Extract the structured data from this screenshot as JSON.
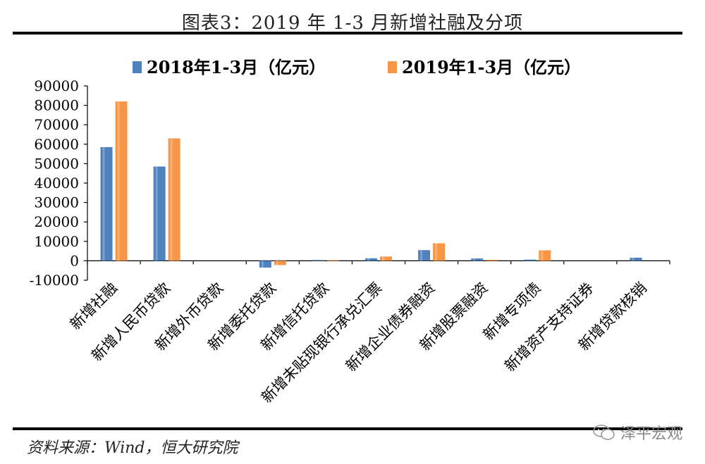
{
  "title": "图表3：2019 年 1-3 月新增社融及分项",
  "source": "资料来源：Wind，恒大研究院",
  "watermark": "泽平宏观",
  "colors": {
    "series_2018": "#4f81bd",
    "series_2019": "#f79646",
    "axis": "#000000"
  },
  "chart_data": {
    "type": "bar",
    "categories": [
      "新增社融",
      "新增人民币贷款",
      "新增外币贷款",
      "新增委托贷款",
      "新增信托贷款",
      "新增未贴现银行承兑汇票",
      "新增企业债券融资",
      "新增股票融资",
      "新增专项债",
      "新增资产支持证券",
      "新增贷款核销"
    ],
    "series": [
      {
        "name": "2018年1-3月（亿元）",
        "values": [
          58500,
          48500,
          0,
          -3500,
          400,
          1300,
          5500,
          1200,
          600,
          0,
          1600
        ]
      },
      {
        "name": "2019年1-3月（亿元）",
        "values": [
          82000,
          63000,
          0,
          -2200,
          300,
          2200,
          9000,
          500,
          5400,
          0,
          0
        ]
      }
    ],
    "ylim": [
      -10000,
      90000
    ],
    "yticks": [
      "90000",
      "80000",
      "70000",
      "60000",
      "50000",
      "40000",
      "30000",
      "20000",
      "10000",
      "0",
      "-10000"
    ],
    "legend_position": "top",
    "grid": false
  }
}
